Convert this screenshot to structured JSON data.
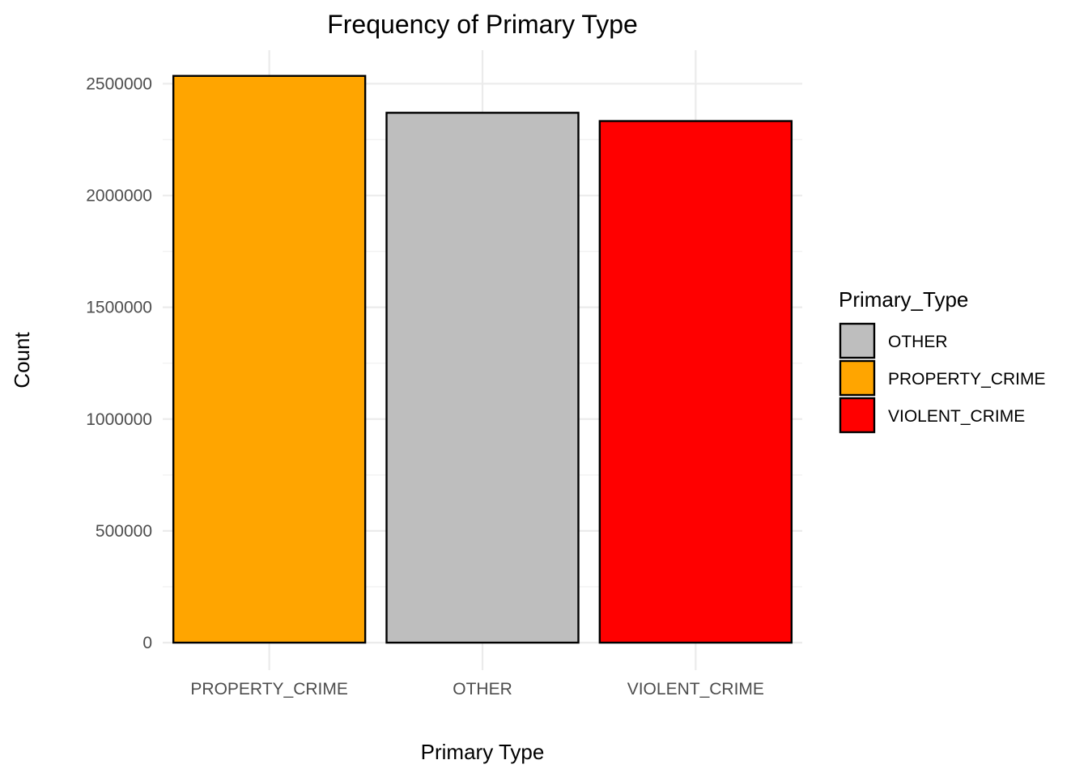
{
  "chart_data": {
    "type": "bar",
    "title": "Frequency of Primary Type",
    "xlabel": "Primary Type",
    "ylabel": "Count",
    "categories": [
      "PROPERTY_CRIME",
      "OTHER",
      "VIOLENT_CRIME"
    ],
    "values": [
      2535000,
      2370000,
      2333000
    ],
    "bar_colors": [
      "#FFA500",
      "#BEBEBE",
      "#FF0000"
    ],
    "ylim": [
      0,
      2650000
    ],
    "yticks": [
      0,
      500000,
      1000000,
      1500000,
      2000000,
      2500000
    ],
    "ytick_labels": [
      "0",
      "500000",
      "1000000",
      "1500000",
      "2000000",
      "2500000"
    ],
    "grid": true,
    "legend": {
      "title": "Primary_Type",
      "position": "right",
      "entries": [
        {
          "label": "OTHER",
          "color": "#BEBEBE"
        },
        {
          "label": "PROPERTY_CRIME",
          "color": "#FFA500"
        },
        {
          "label": "VIOLENT_CRIME",
          "color": "#FF0000"
        }
      ]
    }
  }
}
